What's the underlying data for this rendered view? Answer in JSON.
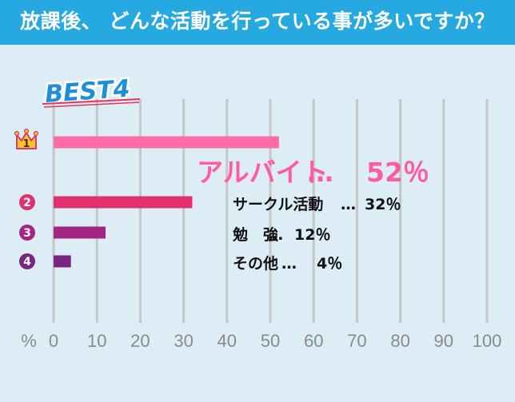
{
  "title": "放課後、 どんな活動を行っている事が多いですか？",
  "badge": "BEST4",
  "colors": {
    "title_bg": "#25a9e0",
    "background": "#dcedf5",
    "grid": "#c6c6c6",
    "badge": "#1e8fd6",
    "badge_underline": "#e8345a",
    "crown": "#f8c52a",
    "crown_outline": "#d63c6c",
    "axis_text": "#8a8a8a"
  },
  "chart_data": {
    "type": "bar",
    "orientation": "horizontal",
    "title": "放課後、 どんな活動を行っている事が多いですか？",
    "unit_label": "%",
    "xlim": [
      0,
      100
    ],
    "xticks": [
      0,
      10,
      20,
      30,
      40,
      50,
      60,
      70,
      80,
      90,
      100
    ],
    "grid": true,
    "categories": [
      "アルバイト",
      "サークル活動",
      "勉　強",
      "その他"
    ],
    "ranks": [
      "1",
      "2",
      "3",
      "4"
    ],
    "values": [
      52,
      32,
      12,
      4
    ],
    "bar_colors": [
      "#ff6aa8",
      "#e0306e",
      "#a32685",
      "#7a2583"
    ],
    "annotations": [
      {
        "label": "アルバイト",
        "sep": "…",
        "value": "52％",
        "color": "#ff5ba2"
      },
      {
        "label": "サークル活動",
        "sep": "…",
        "value": "32％",
        "color": "#111111"
      },
      {
        "label": "勉　強",
        "sep": "…",
        "value": "12％",
        "color": "#111111"
      },
      {
        "label": "その他",
        "sep": "…",
        "value": "4％",
        "color": "#111111"
      }
    ]
  }
}
